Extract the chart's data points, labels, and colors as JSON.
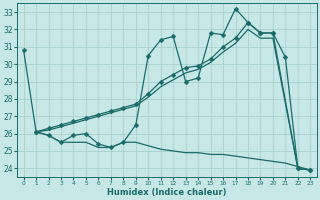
{
  "xlabel": "Humidex (Indice chaleur)",
  "bg_color": "#c8e8e8",
  "grid_color": "#a8d0d0",
  "line_color": "#1a6b6b",
  "xlim": [
    -0.5,
    23.5
  ],
  "ylim": [
    23.5,
    33.5
  ],
  "yticks": [
    24,
    25,
    26,
    27,
    28,
    29,
    30,
    31,
    32,
    33
  ],
  "xticks": [
    0,
    1,
    2,
    3,
    4,
    5,
    6,
    7,
    8,
    9,
    10,
    11,
    12,
    13,
    14,
    15,
    16,
    17,
    18,
    19,
    20,
    21,
    22,
    23
  ],
  "series1_x": [
    0,
    1,
    2,
    3,
    4,
    5,
    6,
    7,
    8,
    9,
    10,
    11,
    12,
    13,
    14,
    15,
    16,
    17,
    18,
    19,
    20,
    21,
    22,
    23
  ],
  "series1_y": [
    30.8,
    26.1,
    25.9,
    25.5,
    25.9,
    26.0,
    25.4,
    25.2,
    25.5,
    26.5,
    30.5,
    31.4,
    31.6,
    29.0,
    29.2,
    31.8,
    31.7,
    33.2,
    32.4,
    31.8,
    31.8,
    30.4,
    24.0,
    23.9
  ],
  "series2_x": [
    1,
    2,
    3,
    4,
    5,
    6,
    7,
    8,
    9,
    10,
    11,
    12,
    13,
    14,
    15,
    16,
    17,
    18,
    19,
    20,
    22,
    23
  ],
  "series2_y": [
    26.1,
    26.3,
    26.5,
    26.7,
    26.9,
    27.1,
    27.3,
    27.5,
    27.7,
    28.3,
    29.0,
    29.4,
    29.8,
    29.9,
    30.3,
    31.0,
    31.5,
    32.4,
    31.8,
    31.8,
    24.0,
    23.9
  ],
  "series3_x": [
    1,
    2,
    3,
    4,
    5,
    6,
    7,
    8,
    9,
    10,
    11,
    12,
    13,
    14,
    15,
    16,
    17,
    18,
    19,
    20,
    22,
    23
  ],
  "series3_y": [
    26.1,
    26.2,
    26.4,
    26.6,
    26.8,
    27.0,
    27.2,
    27.4,
    27.6,
    28.1,
    28.7,
    29.1,
    29.5,
    29.7,
    30.1,
    30.7,
    31.2,
    32.0,
    31.5,
    31.5,
    24.0,
    23.9
  ],
  "series4_x": [
    1,
    2,
    3,
    4,
    5,
    6,
    7,
    8,
    9,
    10,
    11,
    12,
    13,
    14,
    15,
    16,
    17,
    18,
    19,
    20,
    21,
    22,
    23
  ],
  "series4_y": [
    26.1,
    25.9,
    25.5,
    25.5,
    25.5,
    25.2,
    25.2,
    25.5,
    25.5,
    25.3,
    25.1,
    25.0,
    24.9,
    24.9,
    24.8,
    24.8,
    24.7,
    24.6,
    24.5,
    24.4,
    24.3,
    24.1,
    23.9
  ]
}
